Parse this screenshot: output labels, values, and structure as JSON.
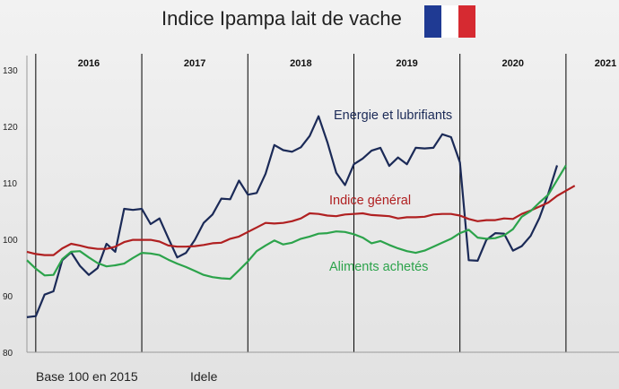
{
  "title": "Indice Ipampa lait de vache",
  "flag": {
    "colors": [
      "#1f3a93",
      "#ffffff",
      "#d62a31"
    ]
  },
  "footer": {
    "base": "Base 100 en 2015",
    "source": "Idele"
  },
  "colors": {
    "energie": "#1b2a57",
    "indice": "#b02021",
    "aliments": "#2ca34b",
    "grid": "#000000",
    "axis": "#9a9a9a"
  },
  "chart_data": {
    "type": "line",
    "year_labels": [
      "2016",
      "2017",
      "2018",
      "2019",
      "2020",
      "2021"
    ],
    "y_ticks": [
      80,
      90,
      100,
      110,
      120,
      130
    ],
    "ylim": [
      80,
      130
    ],
    "xlim": [
      "2015-12",
      "2021-07"
    ],
    "grid": "vertical lines at year boundaries",
    "x": [
      "2015-12",
      "2016-01",
      "2016-02",
      "2016-03",
      "2016-04",
      "2016-05",
      "2016-06",
      "2016-07",
      "2016-08",
      "2016-09",
      "2016-10",
      "2016-11",
      "2016-12",
      "2017-01",
      "2017-02",
      "2017-03",
      "2017-04",
      "2017-05",
      "2017-06",
      "2017-07",
      "2017-08",
      "2017-09",
      "2017-10",
      "2017-11",
      "2017-12",
      "2018-01",
      "2018-02",
      "2018-03",
      "2018-04",
      "2018-05",
      "2018-06",
      "2018-07",
      "2018-08",
      "2018-09",
      "2018-10",
      "2018-11",
      "2018-12",
      "2019-01",
      "2019-02",
      "2019-03",
      "2019-04",
      "2019-05",
      "2019-06",
      "2019-07",
      "2019-08",
      "2019-09",
      "2019-10",
      "2019-11",
      "2019-12",
      "2020-01",
      "2020-02",
      "2020-03",
      "2020-04",
      "2020-05",
      "2020-06",
      "2020-07",
      "2020-08"
    ],
    "series": [
      {
        "name": "Energie et lubrifiants",
        "values": [
          86.2,
          86.4,
          90.2,
          90.8,
          96.3,
          97.7,
          95.3,
          93.7,
          94.9,
          99.2,
          97.8,
          105.4,
          105.2,
          105.4,
          102.7,
          103.7,
          100.2,
          96.8,
          97.6,
          99.9,
          102.9,
          104.4,
          107.2,
          107.1,
          110.4,
          107.9,
          108.2,
          111.6,
          116.7,
          115.8,
          115.5,
          116.3,
          118.3,
          121.8,
          117.2,
          111.8,
          109.6,
          113.3,
          114.3,
          115.7,
          116.2,
          113.0,
          114.5,
          113.3,
          116.2,
          116.1,
          116.2,
          118.6,
          118.1,
          113.6,
          96.3,
          96.2,
          99.9,
          101.1,
          101.0,
          98.0,
          98.8
        ]
      },
      {
        "name": "Indice général",
        "values": [
          97.8,
          97.4,
          97.2,
          97.2,
          98.4,
          99.2,
          98.9,
          98.5,
          98.3,
          98.3,
          98.7,
          99.5,
          99.9,
          99.9,
          99.9,
          99.6,
          98.9,
          98.7,
          98.7,
          98.8,
          99.0,
          99.3,
          99.4,
          100.1,
          100.5,
          101.3,
          102.1,
          102.9,
          102.8,
          102.9,
          103.2,
          103.7,
          104.6,
          104.5,
          104.2,
          104.1,
          104.4,
          104.5,
          104.6,
          104.3,
          104.2,
          104.1,
          103.7,
          103.9,
          103.9,
          104.0,
          104.4,
          104.5,
          104.5,
          104.2,
          103.6,
          103.2,
          103.4,
          103.4,
          103.7,
          103.6,
          104.5
        ]
      },
      {
        "name": "Aliments achetés",
        "values": [
          96.3,
          94.8,
          93.6,
          93.7,
          96.5,
          97.8,
          97.9,
          96.8,
          95.8,
          95.2,
          95.4,
          95.7,
          96.7,
          97.6,
          97.5,
          97.2,
          96.4,
          95.7,
          95.1,
          94.4,
          93.7,
          93.3,
          93.1,
          93.0,
          94.5,
          96.1,
          97.9,
          98.9,
          99.8,
          99.1,
          99.4,
          100.1,
          100.5,
          101.0,
          101.1,
          101.4,
          101.3,
          100.9,
          100.3,
          99.3,
          99.7,
          99.0,
          98.4,
          97.9,
          97.6,
          98.0,
          98.7,
          99.4,
          100.1,
          101.1,
          101.7,
          100.3,
          100.1,
          100.2,
          100.7,
          101.8,
          104.0
        ]
      }
    ],
    "tail": {
      "x": [
        "2020-09",
        "2020-10",
        "2020-11",
        "2020-12",
        "2021-01",
        "2021-02"
      ],
      "Energie et lubrifiants": [
        100.6,
        103.8,
        108.1,
        113.1,
        null,
        null
      ],
      "Indice général": [
        105.1,
        105.8,
        106.5,
        107.7,
        108.6,
        109.5
      ],
      "Aliments achetés": [
        105.0,
        106.5,
        107.9,
        110.5,
        113.1,
        null
      ]
    }
  }
}
